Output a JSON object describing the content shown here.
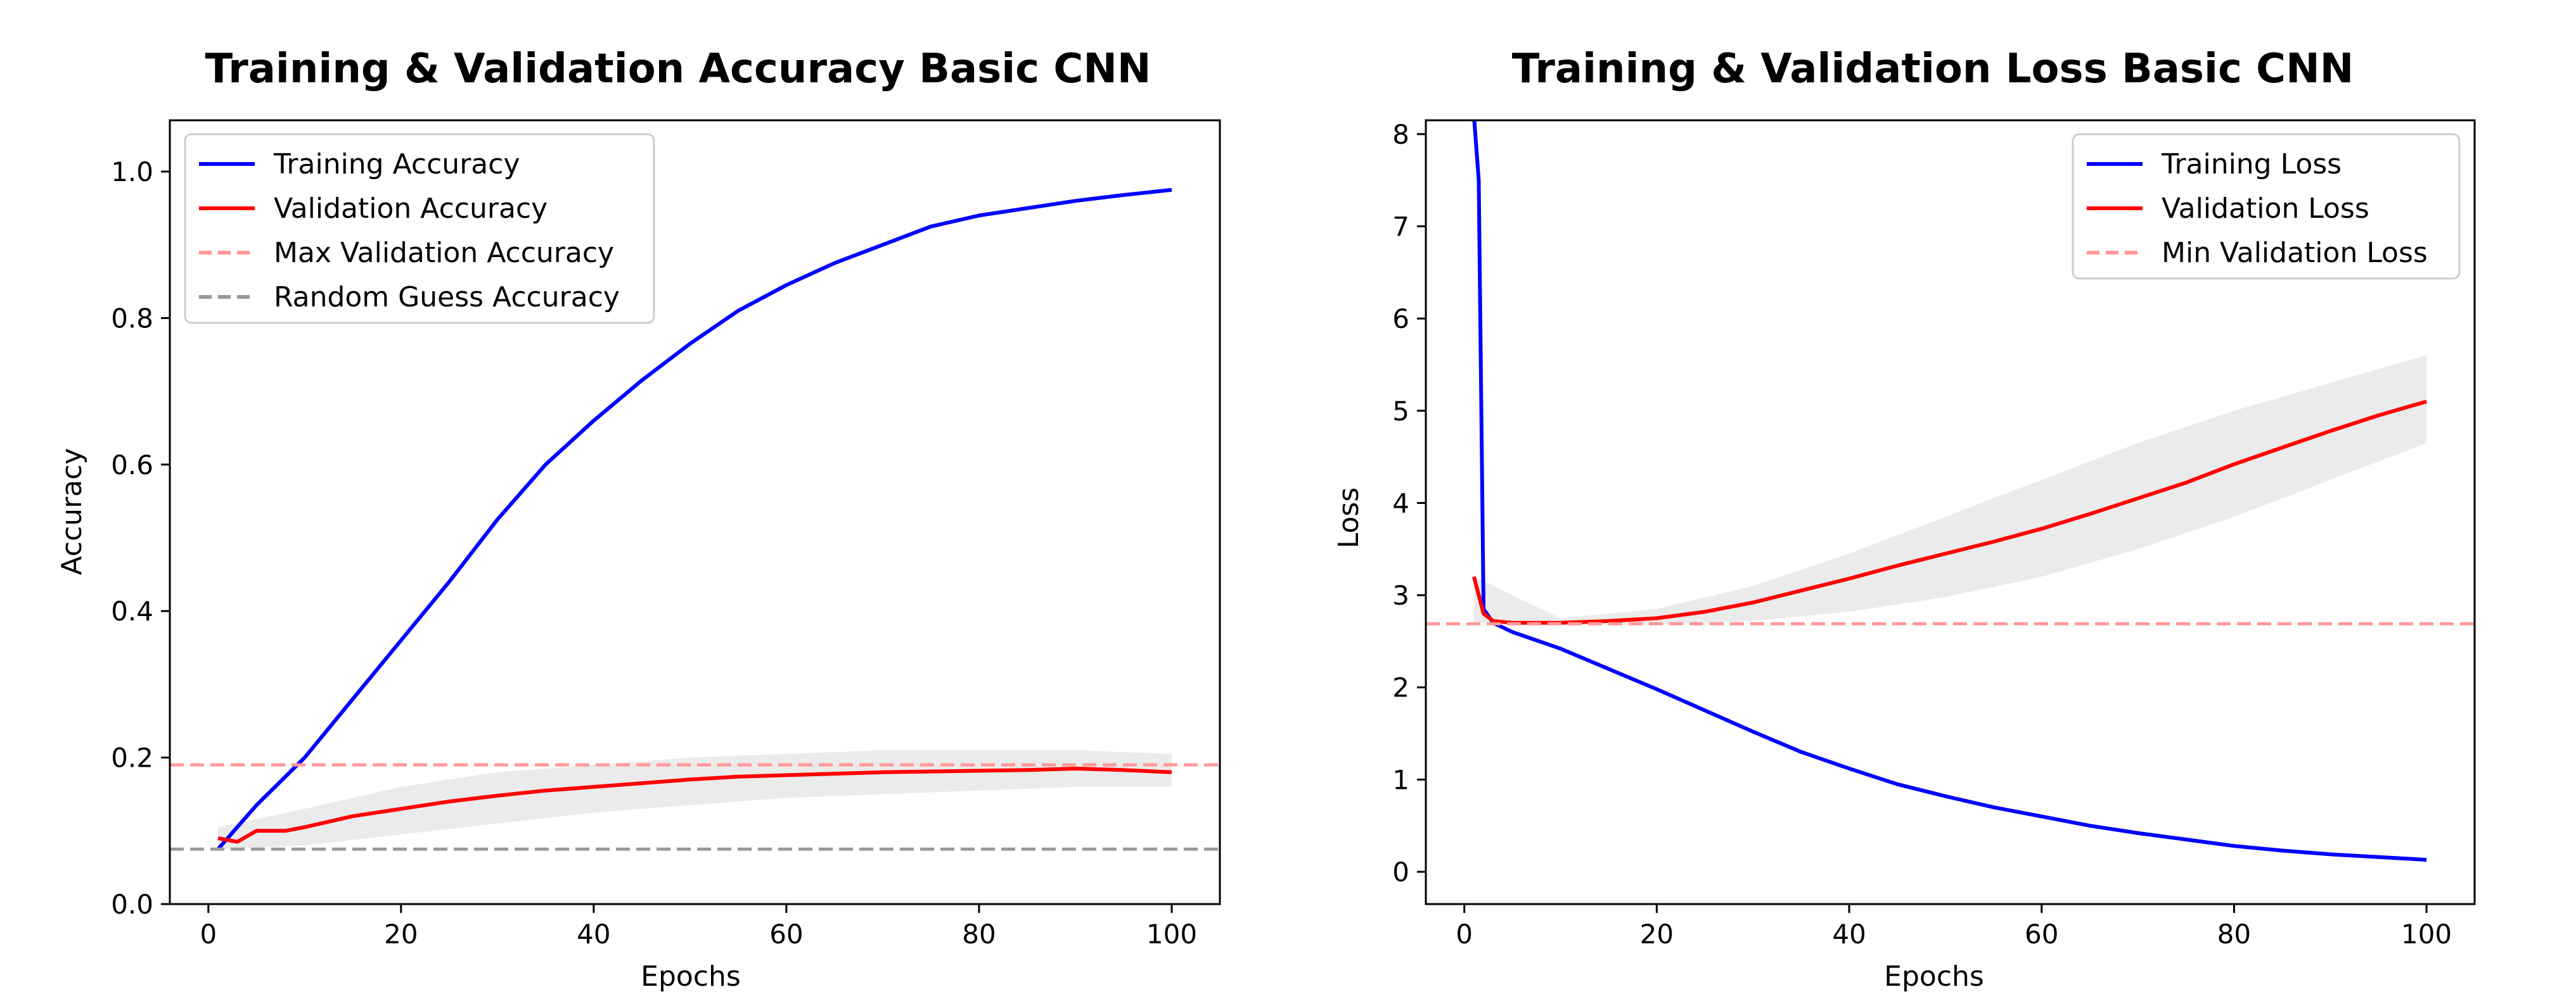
{
  "chart_data": [
    {
      "type": "line",
      "title": "Training & Validation Accuracy Basic CNN",
      "xlabel": "Epochs",
      "ylabel": "Accuracy",
      "xlim": [
        -4,
        105
      ],
      "ylim": [
        0,
        1.07
      ],
      "xticks": [
        0,
        20,
        40,
        60,
        80,
        100
      ],
      "yticks": [
        0.0,
        0.2,
        0.4,
        0.6,
        0.8,
        1.0
      ],
      "ytick_labels": [
        "0.0",
        "0.2",
        "0.4",
        "0.6",
        "0.8",
        "1.0"
      ],
      "legend_position": "upper-left",
      "grid": false,
      "series": [
        {
          "name": "Training Accuracy",
          "color": "#0000ff",
          "style": "solid",
          "x": [
            1,
            5,
            10,
            15,
            20,
            25,
            30,
            35,
            40,
            45,
            50,
            55,
            60,
            65,
            70,
            75,
            80,
            85,
            90,
            95,
            100
          ],
          "y": [
            0.075,
            0.135,
            0.2,
            0.28,
            0.36,
            0.44,
            0.525,
            0.6,
            0.66,
            0.715,
            0.765,
            0.81,
            0.845,
            0.875,
            0.9,
            0.925,
            0.94,
            0.95,
            0.96,
            0.968,
            0.975
          ]
        },
        {
          "name": "Validation Accuracy",
          "color": "#ff0000",
          "style": "solid",
          "x": [
            1,
            3,
            5,
            8,
            10,
            15,
            20,
            25,
            30,
            35,
            40,
            45,
            50,
            55,
            60,
            65,
            70,
            75,
            80,
            85,
            90,
            95,
            100
          ],
          "y": [
            0.09,
            0.085,
            0.1,
            0.1,
            0.105,
            0.12,
            0.13,
            0.14,
            0.148,
            0.155,
            0.16,
            0.165,
            0.17,
            0.174,
            0.176,
            0.178,
            0.18,
            0.181,
            0.182,
            0.183,
            0.185,
            0.183,
            0.18
          ]
        },
        {
          "name": "Max Validation Accuracy",
          "color": "#ff9999",
          "style": "dashed",
          "y_constant": 0.19
        },
        {
          "name": "Random Guess Accuracy",
          "color": "#999999",
          "style": "dashed",
          "y_constant": 0.075
        }
      ],
      "bands": [
        {
          "color": "#d3d3d3",
          "x": [
            1,
            10,
            20,
            30,
            40,
            50,
            60,
            70,
            80,
            90,
            100
          ],
          "lower": [
            0.075,
            0.08,
            0.095,
            0.11,
            0.125,
            0.135,
            0.145,
            0.15,
            0.155,
            0.16,
            0.16
          ],
          "upper": [
            0.105,
            0.13,
            0.16,
            0.18,
            0.19,
            0.2,
            0.205,
            0.21,
            0.21,
            0.21,
            0.205
          ]
        }
      ]
    },
    {
      "type": "line",
      "title": "Training & Validation Loss Basic CNN",
      "xlabel": "Epochs",
      "ylabel": "Loss",
      "xlim": [
        -4,
        105
      ],
      "ylim": [
        -0.35,
        8.15
      ],
      "xticks": [
        0,
        20,
        40,
        60,
        80,
        100
      ],
      "yticks": [
        0,
        1,
        2,
        3,
        4,
        5,
        6,
        7,
        8
      ],
      "ytick_labels": [
        "0",
        "1",
        "2",
        "3",
        "4",
        "5",
        "6",
        "7",
        "8"
      ],
      "legend_position": "upper-right",
      "grid": false,
      "series": [
        {
          "name": "Training Loss",
          "color": "#0000ff",
          "style": "solid",
          "x": [
            1,
            1.5,
            2,
            3,
            5,
            10,
            15,
            20,
            25,
            30,
            35,
            40,
            45,
            50,
            55,
            60,
            65,
            70,
            75,
            80,
            85,
            90,
            95,
            100
          ],
          "y": [
            8.2,
            7.5,
            2.85,
            2.7,
            2.6,
            2.42,
            2.2,
            1.98,
            1.75,
            1.52,
            1.3,
            1.12,
            0.95,
            0.82,
            0.7,
            0.6,
            0.5,
            0.42,
            0.35,
            0.28,
            0.23,
            0.19,
            0.16,
            0.13
          ]
        },
        {
          "name": "Validation Loss",
          "color": "#ff0000",
          "style": "solid",
          "x": [
            1,
            2,
            3,
            5,
            10,
            15,
            20,
            25,
            30,
            35,
            40,
            45,
            50,
            55,
            60,
            65,
            70,
            75,
            80,
            85,
            90,
            95,
            100
          ],
          "y": [
            3.2,
            2.8,
            2.72,
            2.7,
            2.7,
            2.72,
            2.75,
            2.82,
            2.92,
            3.05,
            3.18,
            3.32,
            3.45,
            3.58,
            3.72,
            3.88,
            4.05,
            4.22,
            4.42,
            4.6,
            4.78,
            4.95,
            5.1
          ]
        },
        {
          "name": "Min Validation Loss",
          "color": "#ff9999",
          "style": "dashed",
          "y_constant": 2.69
        }
      ],
      "bands": [
        {
          "color": "#d3d3d3",
          "x": [
            1,
            10,
            20,
            30,
            40,
            50,
            60,
            70,
            80,
            90,
            100
          ],
          "lower": [
            2.7,
            2.68,
            2.68,
            2.72,
            2.82,
            2.98,
            3.2,
            3.5,
            3.85,
            4.25,
            4.65
          ],
          "upper": [
            3.2,
            2.75,
            2.85,
            3.1,
            3.45,
            3.85,
            4.25,
            4.65,
            5.0,
            5.3,
            5.6
          ]
        }
      ]
    }
  ]
}
